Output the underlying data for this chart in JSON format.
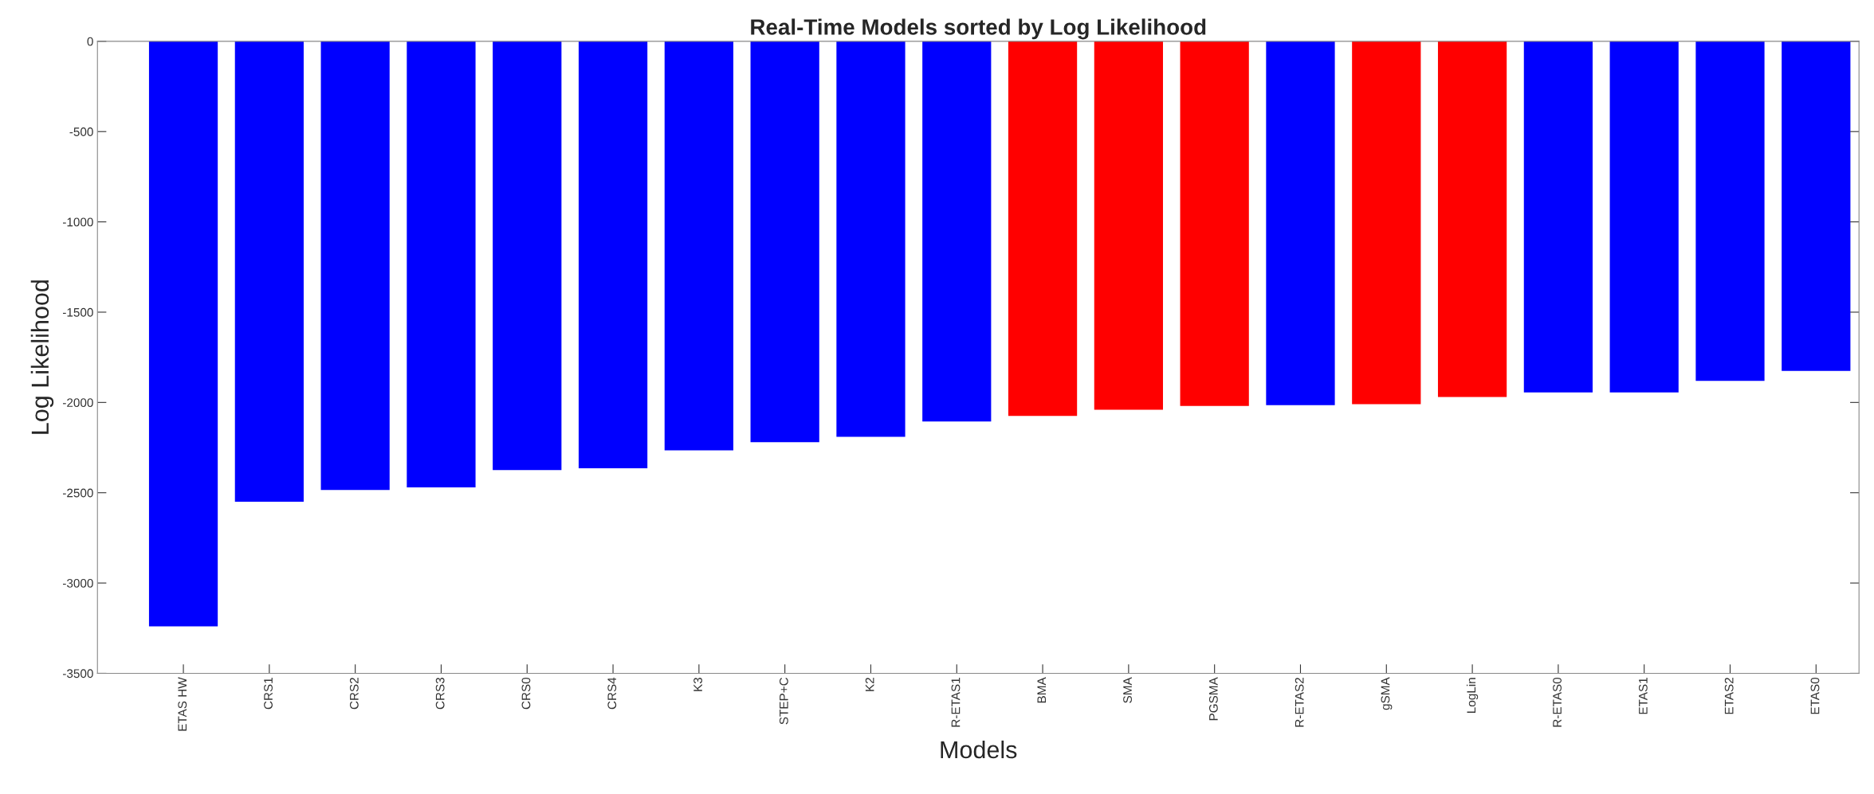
{
  "chart_data": {
    "type": "bar",
    "title": "Real-Time Models sorted by Log Likelihood",
    "xlabel": "Models",
    "ylabel": "Log Likelihood",
    "categories": [
      "ETAS HW",
      "CRS1",
      "CRS2",
      "CRS3",
      "CRS0",
      "CRS4",
      "K3",
      "STEP+C",
      "K2",
      "R-ETAS1",
      "BMA",
      "SMA",
      "PGSMA",
      "R-ETAS2",
      "gSMA",
      "LogLin",
      "R-ETAS0",
      "ETAS1",
      "ETAS2",
      "ETAS0"
    ],
    "values": [
      -3240,
      -2550,
      -2485,
      -2470,
      -2375,
      -2365,
      -2265,
      -2220,
      -2190,
      -2105,
      -2075,
      -2040,
      -2020,
      -2015,
      -2010,
      -1970,
      -1945,
      -1945,
      -1880,
      -1825
    ],
    "colors": [
      "#0000ff",
      "#0000ff",
      "#0000ff",
      "#0000ff",
      "#0000ff",
      "#0000ff",
      "#0000ff",
      "#0000ff",
      "#0000ff",
      "#0000ff",
      "#ff0000",
      "#ff0000",
      "#ff0000",
      "#0000ff",
      "#ff0000",
      "#ff0000",
      "#0000ff",
      "#0000ff",
      "#0000ff",
      "#0000ff"
    ],
    "ylim": [
      -3500,
      0
    ],
    "yticks": [
      -3500,
      -3000,
      -2500,
      -2000,
      -1500,
      -1000,
      -500,
      0
    ],
    "grid": false,
    "legend": false
  }
}
